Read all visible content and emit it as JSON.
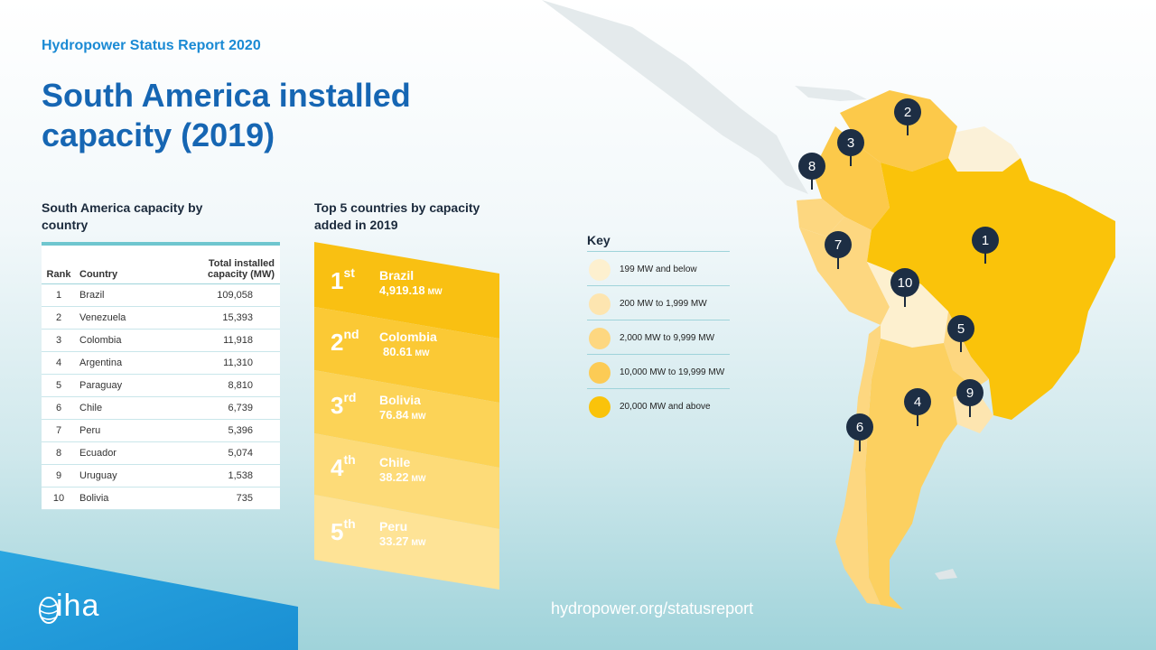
{
  "report_label": "Hydropower Status Report 2020",
  "title": "South America installed capacity (2019)",
  "table": {
    "title": "South America capacity by country",
    "headers": {
      "rank": "Rank",
      "country": "Country",
      "capacity": "Total installed capacity (MW)"
    },
    "rows": [
      {
        "rank": "1",
        "country": "Brazil",
        "capacity": "109,058"
      },
      {
        "rank": "2",
        "country": "Venezuela",
        "capacity": "15,393"
      },
      {
        "rank": "3",
        "country": "Colombia",
        "capacity": "11,918"
      },
      {
        "rank": "4",
        "country": "Argentina",
        "capacity": "11,310"
      },
      {
        "rank": "5",
        "country": "Paraguay",
        "capacity": "8,810"
      },
      {
        "rank": "6",
        "country": "Chile",
        "capacity": "6,739"
      },
      {
        "rank": "7",
        "country": "Peru",
        "capacity": "5,396"
      },
      {
        "rank": "8",
        "country": "Ecuador",
        "capacity": "5,074"
      },
      {
        "rank": "9",
        "country": "Uruguay",
        "capacity": "1,538"
      },
      {
        "rank": "10",
        "country": "Bolivia",
        "capacity": "735"
      }
    ]
  },
  "top5": {
    "title": "Top 5 countries by capacity added in 2019",
    "items": [
      {
        "rank": "1",
        "suffix": "st",
        "country": "Brazil",
        "value": "4,919.18",
        "unit": "MW",
        "color": "#f9c012"
      },
      {
        "rank": "2",
        "suffix": "nd",
        "country": "Colombia",
        "value": "80.61",
        "unit": "MW",
        "color": "#fbc935"
      },
      {
        "rank": "3",
        "suffix": "rd",
        "country": "Bolivia",
        "value": "76.84",
        "unit": "MW",
        "color": "#fcd357"
      },
      {
        "rank": "4",
        "suffix": "th",
        "country": "Chile",
        "value": "38.22",
        "unit": "MW",
        "color": "#fddb78"
      },
      {
        "rank": "5",
        "suffix": "th",
        "country": "Peru",
        "value": "33.27",
        "unit": "MW",
        "color": "#fee396"
      }
    ]
  },
  "key": {
    "title": "Key",
    "items": [
      {
        "label": "199 MW and below",
        "color": "#fdf0cf"
      },
      {
        "label": "200 MW to 1,999 MW",
        "color": "#fde5b0"
      },
      {
        "label": "2,000 MW to 9,999 MW",
        "color": "#fdd780"
      },
      {
        "label": "10,000 MW to 19,999 MW",
        "color": "#fccb55"
      },
      {
        "label": "20,000 MW and above",
        "color": "#fac30a"
      }
    ]
  },
  "map_pins": [
    "1",
    "2",
    "3",
    "4",
    "5",
    "6",
    "7",
    "8",
    "9",
    "10"
  ],
  "footer": {
    "logo_text": "iha",
    "url": "hydropower.org/statusreport"
  }
}
